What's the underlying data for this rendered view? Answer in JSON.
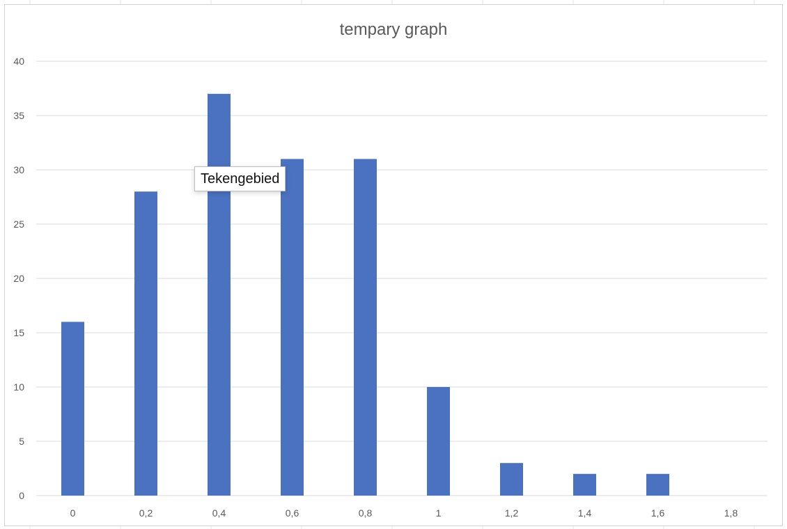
{
  "tooltip": {
    "text": "Tekengebied"
  },
  "colors": {
    "bar": "#4a72c0",
    "grid": "#d9d9d9",
    "axis_text": "#595959",
    "title": "#595959"
  },
  "chart_data": {
    "type": "bar",
    "title": "tempary graph",
    "categories": [
      "0",
      "0,2",
      "0,4",
      "0,6",
      "0,8",
      "1",
      "1,2",
      "1,4",
      "1,6",
      "1,8"
    ],
    "values": [
      16,
      28,
      37,
      31,
      31,
      10,
      3,
      2,
      2,
      0
    ],
    "ylim": [
      0,
      40
    ],
    "yticks": [
      0,
      5,
      10,
      15,
      20,
      25,
      30,
      35,
      40
    ],
    "grid": true,
    "legend": "none"
  }
}
